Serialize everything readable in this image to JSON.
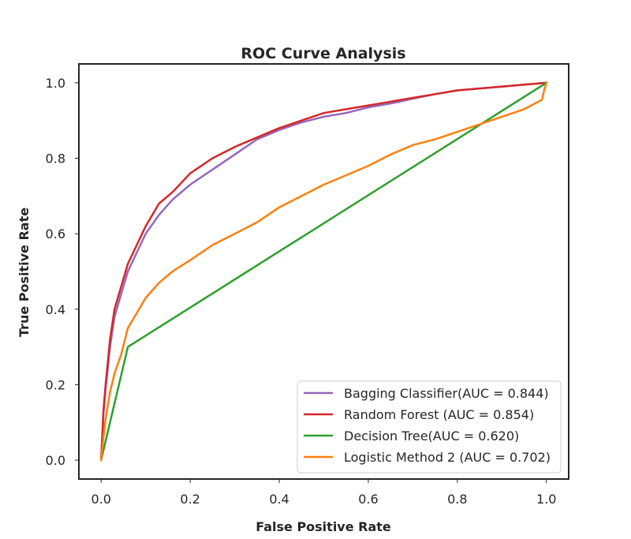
{
  "chart_data": {
    "type": "line",
    "title": "ROC Curve Analysis",
    "xlabel": "False Positive Rate",
    "ylabel": "True Positive Rate",
    "xlim": [
      -0.05,
      1.05
    ],
    "ylim": [
      -0.05,
      1.05
    ],
    "xticks": [
      "0.0",
      "0.2",
      "0.4",
      "0.6",
      "0.8",
      "1.0"
    ],
    "yticks": [
      "0.0",
      "0.2",
      "0.4",
      "0.6",
      "0.8",
      "1.0"
    ],
    "grid": false,
    "legend_position": "lower-right",
    "series": [
      {
        "name": "Bagging Classifier(AUC = 0.844)",
        "color": "#9467bd",
        "x": [
          0.0,
          0.005,
          0.01,
          0.02,
          0.03,
          0.045,
          0.06,
          0.08,
          0.1,
          0.13,
          0.16,
          0.2,
          0.25,
          0.3,
          0.35,
          0.4,
          0.45,
          0.5,
          0.55,
          0.6,
          0.65,
          0.7,
          0.75,
          0.8,
          0.85,
          0.9,
          0.95,
          1.0
        ],
        "y": [
          0.0,
          0.12,
          0.19,
          0.3,
          0.38,
          0.44,
          0.5,
          0.55,
          0.6,
          0.65,
          0.69,
          0.73,
          0.77,
          0.81,
          0.85,
          0.875,
          0.895,
          0.91,
          0.92,
          0.935,
          0.945,
          0.958,
          0.97,
          0.98,
          0.985,
          0.99,
          0.995,
          1.0
        ]
      },
      {
        "name": "Random Forest (AUC = 0.854)",
        "color": "#d62728",
        "x": [
          0.0,
          0.005,
          0.01,
          0.02,
          0.03,
          0.045,
          0.06,
          0.08,
          0.1,
          0.13,
          0.16,
          0.2,
          0.25,
          0.3,
          0.35,
          0.4,
          0.45,
          0.5,
          0.55,
          0.6,
          0.65,
          0.7,
          0.75,
          0.8,
          0.85,
          0.9,
          0.95,
          1.0
        ],
        "y": [
          0.0,
          0.13,
          0.2,
          0.32,
          0.4,
          0.46,
          0.52,
          0.57,
          0.62,
          0.68,
          0.71,
          0.76,
          0.8,
          0.83,
          0.855,
          0.88,
          0.9,
          0.92,
          0.93,
          0.94,
          0.95,
          0.96,
          0.97,
          0.98,
          0.985,
          0.99,
          0.995,
          1.0
        ]
      },
      {
        "name": "Decision Tree(AUC = 0.620)",
        "color": "#2ca02c",
        "x": [
          0.0,
          0.06,
          1.0
        ],
        "y": [
          0.0,
          0.3,
          1.0
        ]
      },
      {
        "name": "Logistic Method 2 (AUC = 0.702)",
        "color": "#ff7f0e",
        "x": [
          0.0,
          0.005,
          0.01,
          0.02,
          0.03,
          0.045,
          0.06,
          0.08,
          0.1,
          0.13,
          0.16,
          0.2,
          0.25,
          0.3,
          0.35,
          0.4,
          0.45,
          0.5,
          0.55,
          0.6,
          0.65,
          0.7,
          0.75,
          0.8,
          0.85,
          0.9,
          0.95,
          0.99,
          0.995,
          1.0
        ],
        "y": [
          0.0,
          0.06,
          0.11,
          0.18,
          0.23,
          0.28,
          0.35,
          0.39,
          0.43,
          0.47,
          0.5,
          0.53,
          0.57,
          0.6,
          0.63,
          0.67,
          0.7,
          0.73,
          0.755,
          0.78,
          0.81,
          0.835,
          0.85,
          0.87,
          0.89,
          0.91,
          0.93,
          0.955,
          0.98,
          1.0
        ]
      }
    ]
  }
}
